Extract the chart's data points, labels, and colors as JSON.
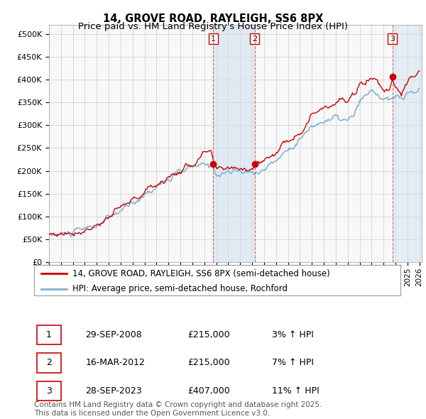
{
  "title": "14, GROVE ROAD, RAYLEIGH, SS6 8PX",
  "subtitle": "Price paid vs. HM Land Registry's House Price Index (HPI)",
  "ylim": [
    0,
    520000
  ],
  "yticks": [
    0,
    50000,
    100000,
    150000,
    200000,
    250000,
    300000,
    350000,
    400000,
    450000,
    500000
  ],
  "ytick_labels": [
    "£0",
    "£50K",
    "£100K",
    "£150K",
    "£200K",
    "£250K",
    "£300K",
    "£350K",
    "£400K",
    "£450K",
    "£500K"
  ],
  "xlim_start": 1995.0,
  "xlim_end": 2026.2,
  "hpi_color": "#7bafd4",
  "price_color": "#cc0000",
  "grid_color": "#cccccc",
  "bg_color": "#f8f8f8",
  "transaction1_date": 2008.75,
  "transaction1_price": 215000,
  "transaction1_label": "1",
  "transaction2_date": 2012.21,
  "transaction2_price": 215000,
  "transaction2_label": "2",
  "transaction3_date": 2023.75,
  "transaction3_price": 407000,
  "transaction3_label": "3",
  "band1_start": 2008.75,
  "band1_end": 2012.21,
  "band2_start": 2023.75,
  "band2_end": 2026.2,
  "legend_line1": "14, GROVE ROAD, RAYLEIGH, SS6 8PX (semi-detached house)",
  "legend_line2": "HPI: Average price, semi-detached house, Rochford",
  "table_rows": [
    [
      "1",
      "29-SEP-2008",
      "£215,000",
      "3% ↑ HPI"
    ],
    [
      "2",
      "16-MAR-2012",
      "£215,000",
      "7% ↑ HPI"
    ],
    [
      "3",
      "28-SEP-2023",
      "£407,000",
      "11% ↑ HPI"
    ]
  ],
  "footer": "Contains HM Land Registry data © Crown copyright and database right 2025.\nThis data is licensed under the Open Government Licence v3.0.",
  "title_fontsize": 10.5,
  "subtitle_fontsize": 9.5,
  "tick_fontsize": 8,
  "legend_fontsize": 8.5,
  "table_fontsize": 9,
  "footer_fontsize": 7.5
}
